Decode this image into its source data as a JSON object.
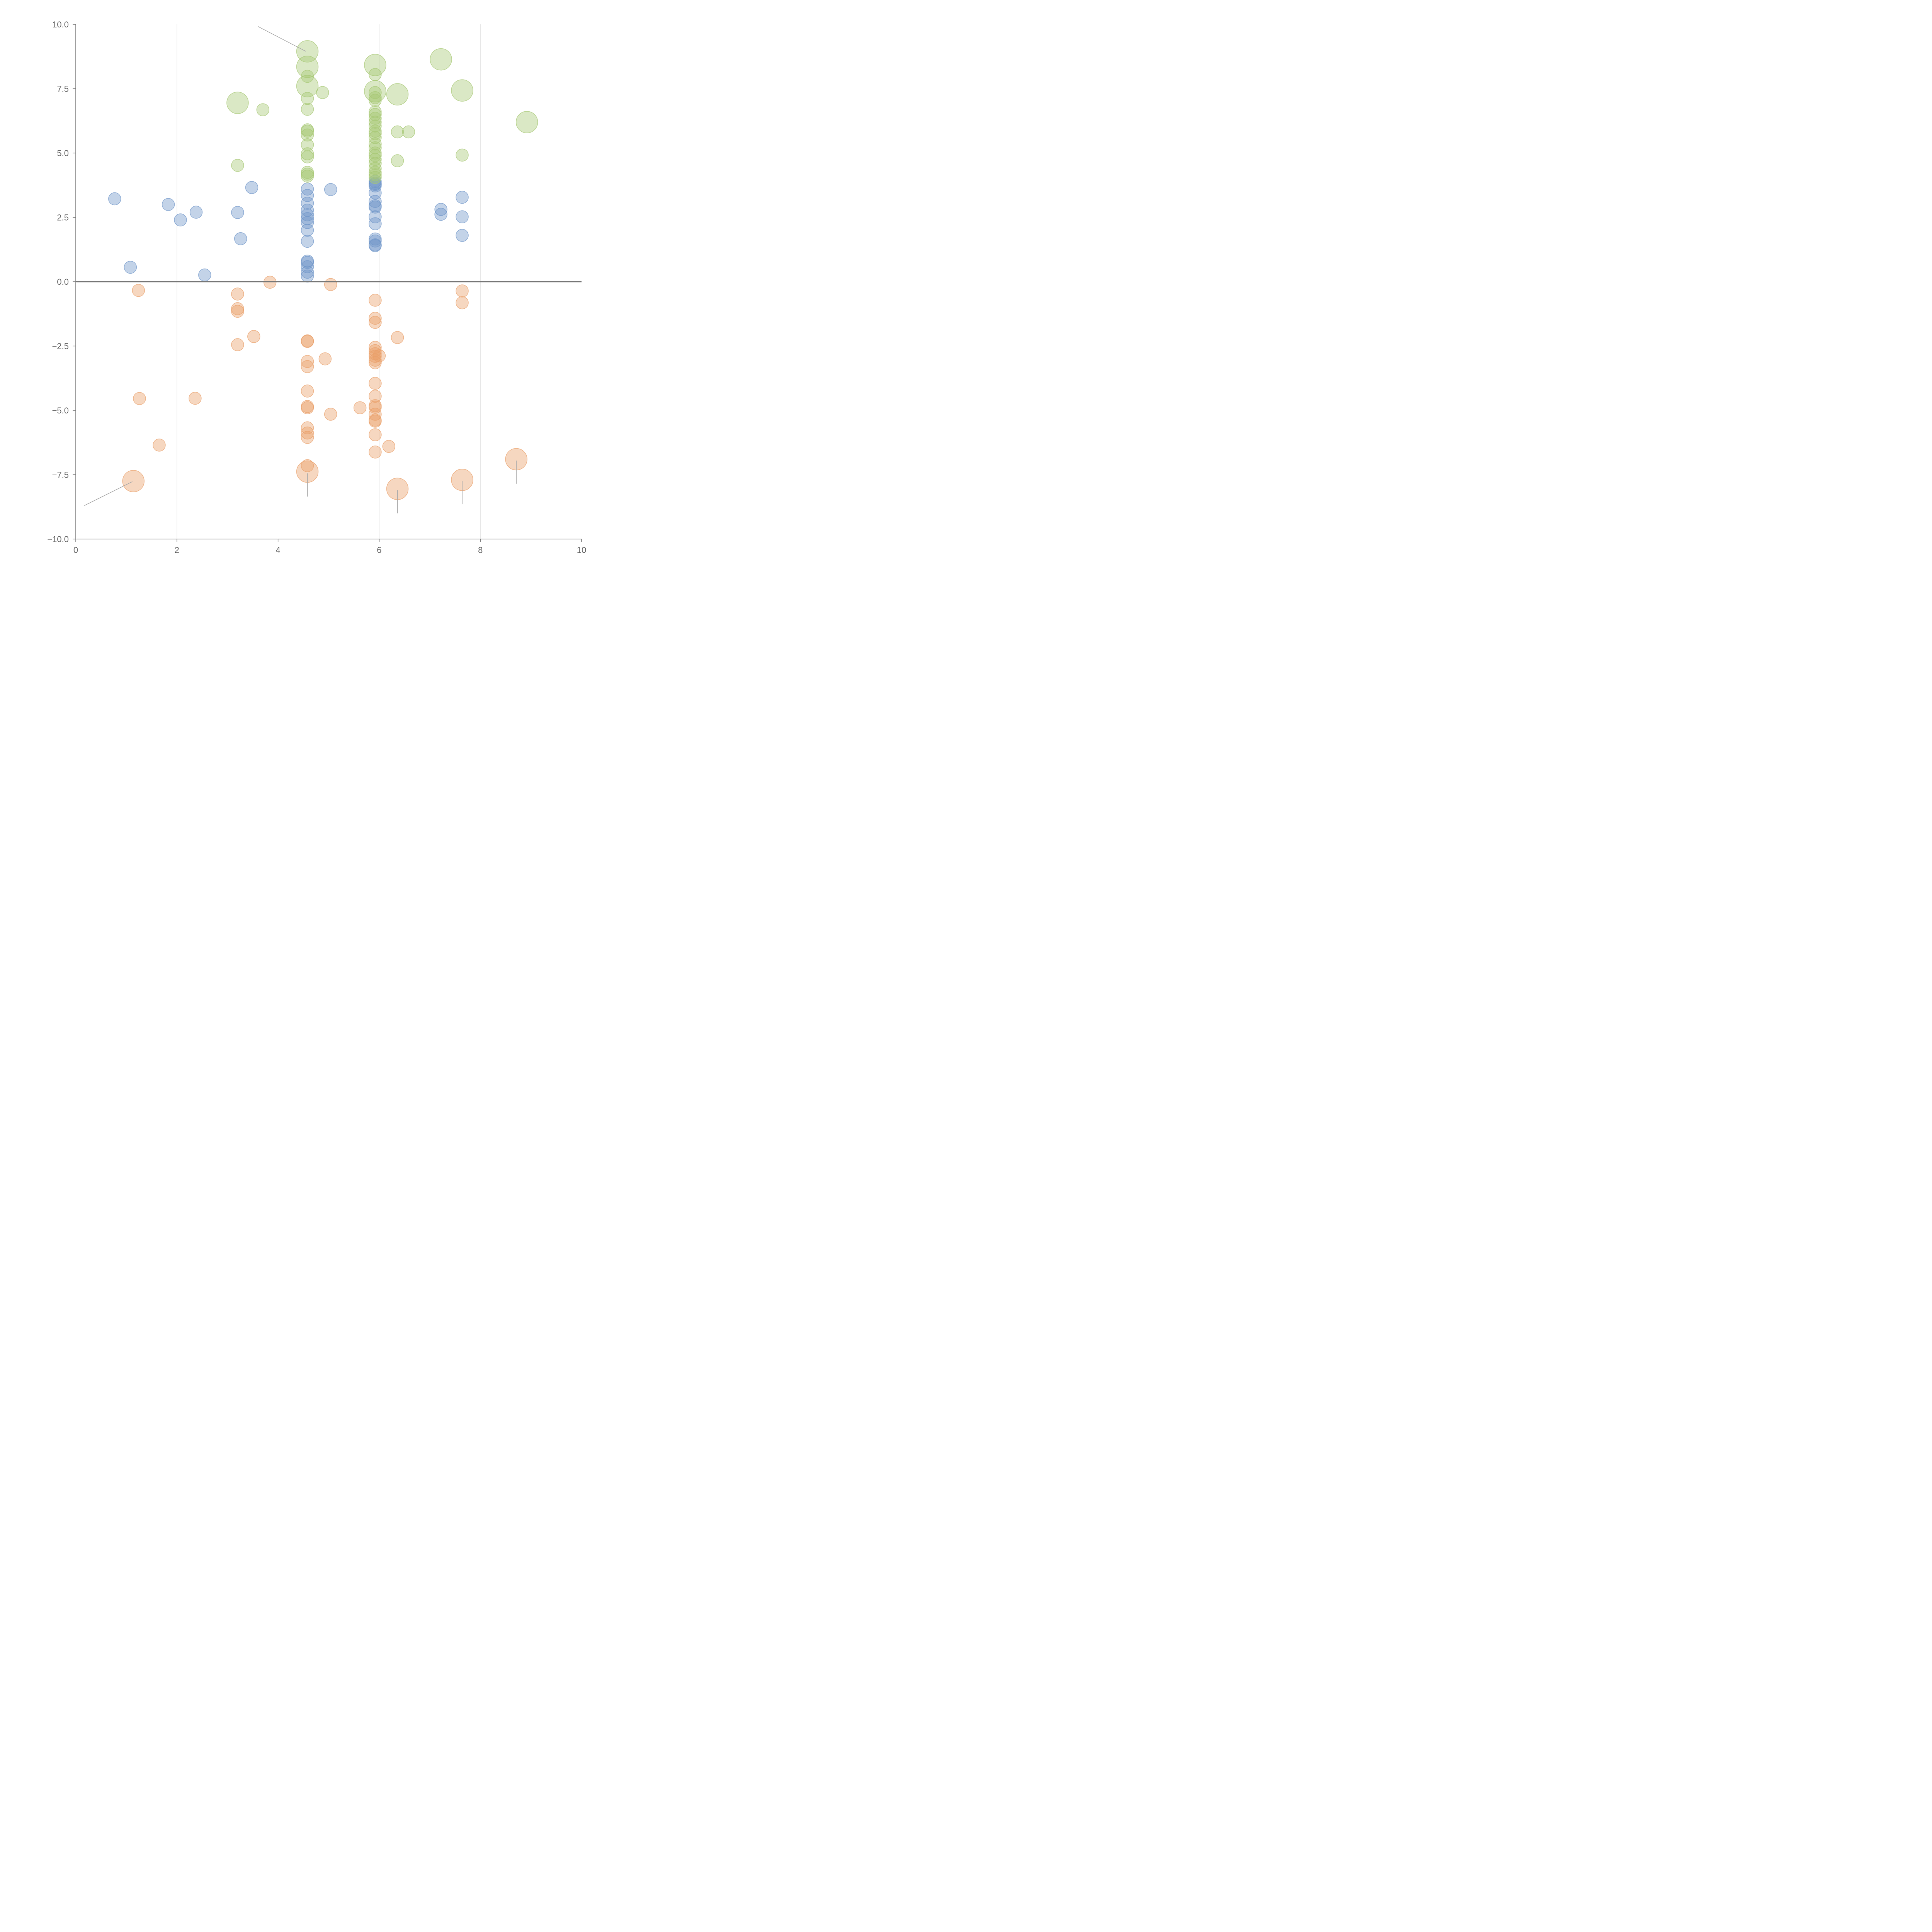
{
  "chart_data": {
    "type": "scatter",
    "title": "",
    "xlabel": "",
    "ylabel": "",
    "xlim": [
      0,
      10
    ],
    "ylim": [
      -10,
      10
    ],
    "x_ticks": [
      0,
      2,
      4,
      6,
      8,
      10
    ],
    "x_tick_labels": [
      "0",
      "2",
      "4",
      "6",
      "8",
      "10"
    ],
    "y_ticks": [
      10,
      7.5,
      5,
      2.5,
      0,
      -2.5,
      -5,
      -7.5,
      -10
    ],
    "y_tick_labels": [
      "10.0",
      "7.5",
      "5.0",
      "2.5",
      "0.0",
      "−2.5",
      "−5.0",
      "−7.5",
      "−10.0"
    ],
    "vertical_grid": true,
    "zero_line": true,
    "legend": "none",
    "colors": {
      "blue": "#6f95c9",
      "green": "#a6c874",
      "orange": "#e9a06a",
      "axis": "#777777",
      "grid": "#dddddd",
      "zero_line": "#777777",
      "connector": "#aaaaaa"
    },
    "series": [
      {
        "name": "blue",
        "color_key": "blue",
        "radius": "small",
        "points": [
          [
            0.77,
            3.22
          ],
          [
            1.08,
            0.56
          ],
          [
            1.83,
            3.0
          ],
          [
            2.07,
            2.4
          ],
          [
            2.38,
            2.7
          ],
          [
            2.55,
            0.26
          ],
          [
            3.2,
            2.69
          ],
          [
            3.26,
            1.67
          ],
          [
            3.48,
            3.66
          ],
          [
            5.04,
            3.58
          ],
          [
            4.58,
            3.6
          ],
          [
            4.58,
            3.35
          ],
          [
            4.58,
            3.05
          ],
          [
            4.58,
            2.78
          ],
          [
            4.58,
            2.6
          ],
          [
            4.58,
            2.45
          ],
          [
            4.58,
            2.3
          ],
          [
            4.58,
            2.0
          ],
          [
            4.58,
            1.57
          ],
          [
            4.58,
            0.8
          ],
          [
            4.58,
            0.75
          ],
          [
            4.58,
            0.58
          ],
          [
            4.58,
            0.37
          ],
          [
            4.58,
            0.22
          ],
          [
            5.92,
            3.9
          ],
          [
            5.92,
            3.82
          ],
          [
            5.92,
            3.78
          ],
          [
            5.92,
            3.72
          ],
          [
            5.92,
            3.45
          ],
          [
            5.92,
            3.12
          ],
          [
            5.92,
            2.95
          ],
          [
            5.92,
            2.9
          ],
          [
            5.92,
            2.52
          ],
          [
            5.92,
            2.25
          ],
          [
            5.92,
            1.66
          ],
          [
            5.92,
            1.58
          ],
          [
            5.92,
            1.43
          ],
          [
            5.92,
            1.4
          ],
          [
            7.22,
            2.81
          ],
          [
            7.22,
            2.62
          ],
          [
            7.64,
            3.28
          ],
          [
            7.64,
            2.52
          ],
          [
            7.64,
            1.8
          ]
        ]
      },
      {
        "name": "green",
        "color_key": "green",
        "radius": "small",
        "points": [
          [
            3.2,
            4.52
          ],
          [
            3.7,
            6.68
          ],
          [
            4.58,
            7.98
          ],
          [
            4.58,
            7.12
          ],
          [
            4.58,
            6.7
          ],
          [
            4.58,
            5.9
          ],
          [
            4.58,
            5.85
          ],
          [
            4.58,
            5.7
          ],
          [
            4.58,
            5.32
          ],
          [
            4.58,
            4.97
          ],
          [
            4.58,
            4.85
          ],
          [
            4.58,
            4.25
          ],
          [
            4.58,
            4.18
          ],
          [
            4.58,
            4.1
          ],
          [
            4.88,
            7.35
          ],
          [
            5.92,
            8.05
          ],
          [
            5.92,
            7.35
          ],
          [
            5.92,
            7.15
          ],
          [
            5.92,
            7.05
          ],
          [
            5.92,
            6.6
          ],
          [
            5.92,
            6.5
          ],
          [
            5.92,
            6.35
          ],
          [
            5.92,
            6.2
          ],
          [
            5.92,
            6.05
          ],
          [
            5.92,
            5.85
          ],
          [
            5.92,
            5.75
          ],
          [
            5.92,
            5.6
          ],
          [
            5.92,
            5.35
          ],
          [
            5.92,
            5.2
          ],
          [
            5.92,
            5.0
          ],
          [
            5.92,
            4.9
          ],
          [
            5.92,
            4.75
          ],
          [
            5.92,
            4.6
          ],
          [
            5.92,
            4.4
          ],
          [
            5.92,
            4.25
          ],
          [
            5.92,
            4.15
          ],
          [
            5.92,
            4.05
          ],
          [
            6.36,
            5.82
          ],
          [
            6.36,
            4.7
          ],
          [
            6.58,
            5.82
          ],
          [
            7.64,
            4.92
          ]
        ]
      },
      {
        "name": "green-large",
        "color_key": "green",
        "radius": "large",
        "points": [
          [
            3.2,
            6.95
          ],
          [
            4.58,
            8.95
          ],
          [
            4.58,
            8.35
          ],
          [
            4.58,
            7.6
          ],
          [
            5.92,
            8.42
          ],
          [
            5.92,
            7.4
          ],
          [
            6.36,
            7.28
          ],
          [
            7.22,
            8.64
          ],
          [
            7.64,
            7.43
          ],
          [
            8.92,
            6.2
          ]
        ]
      },
      {
        "name": "orange",
        "color_key": "orange",
        "radius": "small",
        "points": [
          [
            1.24,
            -0.34
          ],
          [
            1.26,
            -4.54
          ],
          [
            1.65,
            -6.35
          ],
          [
            2.36,
            -4.53
          ],
          [
            3.2,
            -0.48
          ],
          [
            3.2,
            -1.05
          ],
          [
            3.2,
            -1.15
          ],
          [
            3.2,
            -2.45
          ],
          [
            3.52,
            -2.13
          ],
          [
            3.84,
            -0.02
          ],
          [
            4.58,
            -2.3
          ],
          [
            4.58,
            -2.32
          ],
          [
            4.58,
            -3.1
          ],
          [
            4.58,
            -3.3
          ],
          [
            4.58,
            -4.25
          ],
          [
            4.58,
            -4.85
          ],
          [
            4.58,
            -4.9
          ],
          [
            4.58,
            -5.68
          ],
          [
            4.58,
            -5.88
          ],
          [
            4.58,
            -6.05
          ],
          [
            4.58,
            -7.15
          ],
          [
            4.93,
            -3.0
          ],
          [
            5.04,
            -0.11
          ],
          [
            5.04,
            -5.15
          ],
          [
            5.62,
            -4.9
          ],
          [
            5.92,
            -0.72
          ],
          [
            5.92,
            -1.42
          ],
          [
            5.92,
            -1.58
          ],
          [
            5.92,
            -2.55
          ],
          [
            5.92,
            -2.68
          ],
          [
            5.92,
            -2.8
          ],
          [
            5.92,
            -2.9
          ],
          [
            5.92,
            -3.05
          ],
          [
            5.92,
            -3.15
          ],
          [
            6.0,
            -2.88
          ],
          [
            5.92,
            -3.95
          ],
          [
            5.92,
            -4.45
          ],
          [
            5.92,
            -4.82
          ],
          [
            5.92,
            -4.88
          ],
          [
            5.92,
            -5.15
          ],
          [
            5.92,
            -5.38
          ],
          [
            5.92,
            -5.42
          ],
          [
            5.92,
            -5.95
          ],
          [
            5.92,
            -6.62
          ],
          [
            6.19,
            -6.4
          ],
          [
            6.36,
            -2.17
          ],
          [
            7.64,
            -0.36
          ],
          [
            7.64,
            -0.82
          ]
        ]
      },
      {
        "name": "orange-large",
        "color_key": "orange",
        "radius": "large",
        "points": [
          [
            1.14,
            -7.75
          ],
          [
            4.58,
            -7.38
          ],
          [
            6.36,
            -8.05
          ],
          [
            7.64,
            -7.7
          ],
          [
            8.71,
            -6.9
          ]
        ]
      }
    ],
    "connector_lines": [
      {
        "from": [
          3.6,
          9.92
        ],
        "to": [
          4.55,
          8.95
        ]
      },
      {
        "from": [
          0.17,
          -8.7
        ],
        "to": [
          1.12,
          -7.77
        ]
      },
      {
        "from": [
          4.58,
          -7.45
        ],
        "to": [
          4.58,
          -8.35
        ]
      },
      {
        "from": [
          6.36,
          -8.1
        ],
        "to": [
          6.36,
          -9.0
        ]
      },
      {
        "from": [
          7.64,
          -7.75
        ],
        "to": [
          7.64,
          -8.65
        ]
      },
      {
        "from": [
          8.71,
          -6.95
        ],
        "to": [
          8.71,
          -7.85
        ]
      }
    ]
  }
}
